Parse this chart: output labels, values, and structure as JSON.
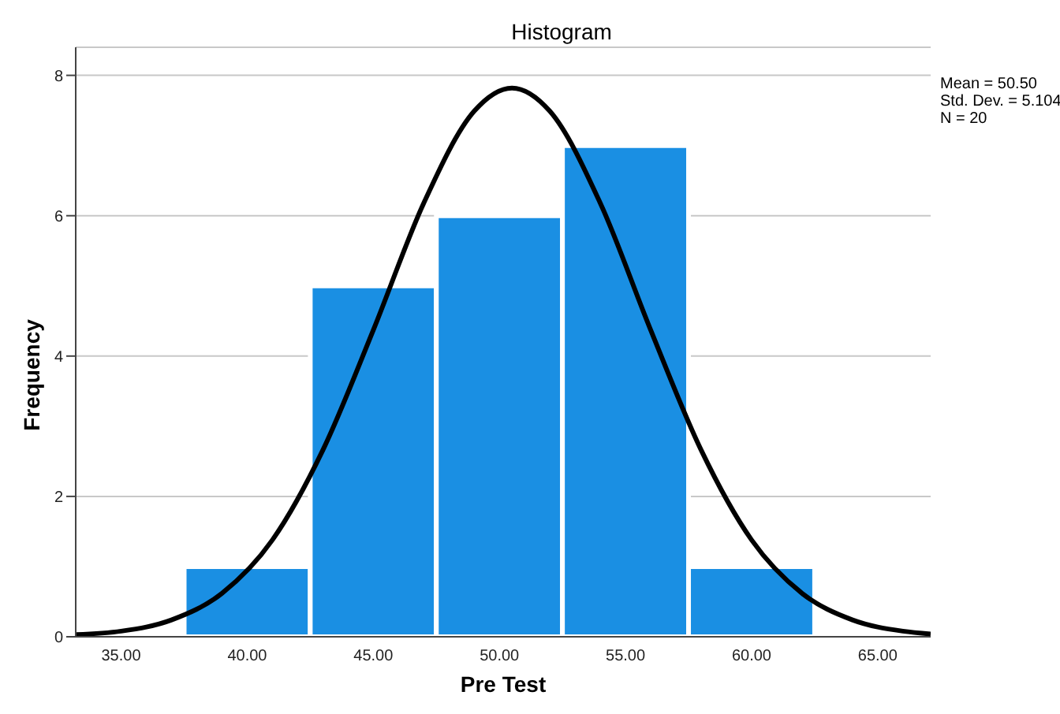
{
  "chart_data": {
    "type": "histogram",
    "title": "Histogram",
    "xlabel": "Pre Test",
    "ylabel": "Frequency",
    "bins": [
      37.5,
      42.5,
      47.5,
      52.5,
      57.5,
      62.5
    ],
    "values": [
      1,
      5,
      6,
      7,
      1
    ],
    "color": "#1a8fe3",
    "series": [
      {
        "type": "line",
        "color": "#000000",
        "x": [
          33.2,
          35,
          37,
          39,
          41,
          43,
          45,
          47,
          49,
          50.5,
          52,
          54,
          56,
          58,
          60,
          62,
          64,
          66,
          67.1
        ],
        "values": [
          0.03,
          0.08,
          0.24,
          0.62,
          1.38,
          2.66,
          4.37,
          6.18,
          7.49,
          7.82,
          7.49,
          6.18,
          4.37,
          2.66,
          1.38,
          0.62,
          0.24,
          0.08,
          0.04
        ]
      }
    ],
    "xlim": [
      33.2,
      67.1
    ],
    "ylim": [
      0,
      8.4
    ],
    "xticks": [
      {
        "value": 35,
        "label": "35.00"
      },
      {
        "value": 40,
        "label": "40.00"
      },
      {
        "value": 45,
        "label": "45.00"
      },
      {
        "value": 50,
        "label": "50.00"
      },
      {
        "value": 55,
        "label": "55.00"
      },
      {
        "value": 60,
        "label": "60.00"
      },
      {
        "value": 65,
        "label": "65.00"
      }
    ],
    "yticks": [
      0,
      2,
      4,
      6,
      8
    ],
    "grid": "y",
    "annotations": [
      "Mean = 50.50",
      "Std. Dev. = 5.104",
      "N = 20"
    ]
  }
}
